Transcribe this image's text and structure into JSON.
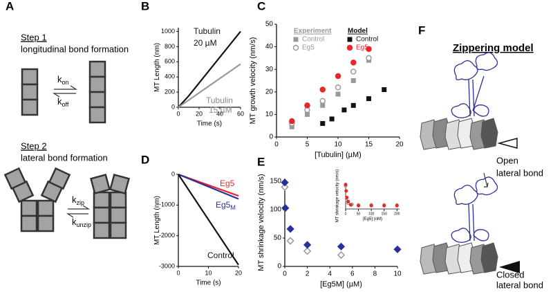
{
  "panel_labels": [
    "A",
    "B",
    "C",
    "D",
    "E",
    "F"
  ],
  "panel_A": {
    "step1": {
      "title": "Step 1",
      "text": "longitudinal bond formation",
      "forward": {
        "k": "k",
        "sub": "on"
      },
      "backward": {
        "k": "k",
        "sub": "off"
      }
    },
    "step2": {
      "title": "Step 2",
      "text": "lateral bond formation",
      "forward": {
        "k": "k",
        "sub": "zip"
      },
      "backward": {
        "k": "k",
        "sub": "unzip"
      }
    }
  },
  "panel_F": {
    "title": "Zippering model",
    "open": [
      "Open",
      "lateral bond"
    ],
    "closed": [
      "Closed",
      "lateral bond"
    ]
  },
  "chart_data": [
    {
      "type": "line",
      "xlabel": "Time (s)",
      "ylabel": "MT Length (nm)",
      "xlim": [
        0,
        60
      ],
      "ylim": [
        0,
        1050
      ],
      "xticks": [
        0,
        20,
        40,
        60
      ],
      "yticks": [
        0,
        200,
        400,
        600,
        800,
        1000
      ],
      "series": [
        {
          "color": "#111111",
          "x": [
            0,
            10,
            20,
            30,
            40,
            50,
            60
          ],
          "values": [
            0,
            150,
            320,
            490,
            660,
            830,
            1000
          ]
        },
        {
          "color": "#999999",
          "x": [
            0,
            10,
            20,
            30,
            40,
            50,
            60
          ],
          "values": [
            0,
            95,
            190,
            285,
            380,
            475,
            570
          ]
        }
      ],
      "annotations": [
        {
          "text": "Tubulin",
          "color": "#111111"
        },
        {
          "text": "20 µM",
          "color": "#111111"
        },
        {
          "text": "Tubulin",
          "color": "#888888"
        },
        {
          "text": "15 µM",
          "color": "#888888"
        }
      ]
    },
    {
      "type": "scatter",
      "xlabel": "[Tubulin] (µM)",
      "ylabel": "MT growth velocity (nm/s)",
      "xlim": [
        0,
        20
      ],
      "ylim": [
        0,
        50
      ],
      "xticks": [
        0,
        5,
        10,
        15,
        20
      ],
      "yticks": [
        0,
        10,
        20,
        30,
        40,
        50
      ],
      "groups": [
        {
          "name": "Experiment",
          "color": "#999999",
          "series": [
            {
              "name": "Control",
              "color": "#999999",
              "marker": "square",
              "x": [
                2.5,
                5,
                7.5,
                10,
                12.5,
                15
              ],
              "values": [
                4.5,
                10,
                14,
                19,
                25,
                34
              ]
            },
            {
              "name": "Eg5",
              "color": "#999999",
              "marker": "circle-open",
              "x": [
                2.5,
                5,
                7.5,
                10,
                12.5,
                15
              ],
              "values": [
                6,
                12,
                16,
                22,
                29,
                35
              ]
            }
          ]
        },
        {
          "name": "Model",
          "color": "#111111",
          "series": [
            {
              "name": "Control",
              "color": "#111111",
              "marker": "square",
              "x": [
                7.5,
                9,
                11,
                12.5,
                15,
                17.5
              ],
              "values": [
                6,
                8,
                12,
                14,
                17,
                21
              ]
            },
            {
              "name": "Eg5",
              "color": "#e8262b",
              "marker": "circle",
              "x": [
                2.5,
                5,
                7.5,
                10,
                12.5,
                15
              ],
              "values": [
                7,
                14,
                21,
                27,
                33,
                39
              ]
            }
          ]
        }
      ]
    },
    {
      "type": "line",
      "xlabel": "Time (s)",
      "ylabel": "MT Length (nm)",
      "xlim": [
        0,
        20
      ],
      "ylim": [
        -3000,
        0
      ],
      "xticks": [
        0,
        10,
        20
      ],
      "yticks": [
        -3000,
        -2000,
        -1000,
        0
      ],
      "series": [
        {
          "color": "#e8262b",
          "x": [
            0,
            20
          ],
          "values": [
            0,
            -700
          ]
        },
        {
          "color": "#2b2f9a",
          "x": [
            0,
            20
          ],
          "values": [
            0,
            -800
          ]
        },
        {
          "color": "#111111",
          "x": [
            0,
            20
          ],
          "values": [
            0,
            -2950
          ]
        }
      ],
      "annotations": [
        {
          "text": "Eg5",
          "color": "#e8262b"
        },
        {
          "text": "Eg5",
          "sub": "M",
          "color": "#2b2f9a"
        },
        {
          "text": "Control",
          "color": "#111111"
        }
      ]
    },
    {
      "type": "scatter",
      "xlabel": "[Eg5M] (µM)",
      "ylabel": "MT shrinkage velocity (nm/s)",
      "xlim": [
        0,
        10
      ],
      "ylim": [
        0,
        155
      ],
      "xticks": [
        0,
        2,
        4,
        6,
        8,
        10
      ],
      "yticks": [
        0,
        50,
        100,
        150
      ],
      "series": [
        {
          "color": "#999999",
          "marker": "diamond-open",
          "x": [
            0,
            0.5,
            2,
            5
          ],
          "values": [
            140,
            45,
            27,
            20
          ]
        },
        {
          "color": "#2b2f9a",
          "marker": "diamond",
          "x": [
            0,
            0.05,
            0.5,
            2,
            5,
            10
          ],
          "values": [
            148,
            103,
            66,
            38,
            35,
            30
          ]
        }
      ]
    },
    {
      "type": "scatter",
      "xlabel": "[Eg5] (nM)",
      "ylabel": "MT shrinkage velocity (nm/s)",
      "xlim": [
        0,
        210
      ],
      "ylim": [
        0,
        160
      ],
      "xticks": [
        0,
        50,
        100,
        150,
        200
      ],
      "series": [
        {
          "color": "#999999",
          "marker": "circle-open",
          "x": [
            0,
            5,
            10,
            25,
            50,
            100,
            150,
            200
          ],
          "values": [
            140,
            50,
            35,
            28,
            25,
            25,
            25,
            25
          ]
        },
        {
          "color": "#e8262b",
          "marker": "circle",
          "x": [
            0,
            2,
            5,
            10,
            20,
            50,
            100,
            150,
            200
          ],
          "values": [
            148,
            110,
            70,
            45,
            25,
            20,
            20,
            20,
            20
          ]
        }
      ]
    }
  ]
}
